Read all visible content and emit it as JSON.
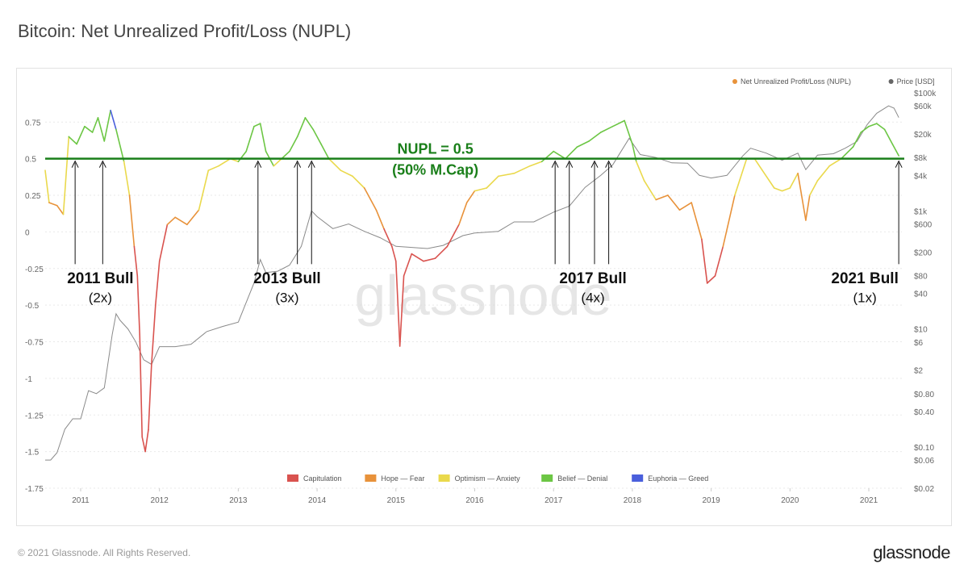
{
  "header": {
    "title": "Bitcoin: Net Unrealized Profit/Loss (NUPL)"
  },
  "footer": {
    "copyright": "© 2021 Glassnode. All Rights Reserved.",
    "brand": "glassnode"
  },
  "watermark": "glassnode",
  "colors": {
    "capitulation": "#d9534f",
    "hope_fear": "#e8923a",
    "optimism_anxiety": "#ead94c",
    "belief_denial": "#6cc644",
    "euphoria_greed": "#4a5fdc",
    "price": "#8a8a8a",
    "threshold": "#1a7f1a",
    "nupl_legend": "#e8923a",
    "price_legend": "#666666"
  },
  "chart_data": {
    "type": "line",
    "title": "Bitcoin: Net Unrealized Profit/Loss (NUPL)",
    "left_axis": {
      "ticks": [
        "0.75",
        "0.5",
        "0.25",
        "0",
        "-0.25",
        "-0.5",
        "-0.75",
        "-1",
        "-1.25",
        "-1.5",
        "-1.75"
      ],
      "tick_values": [
        0.75,
        0.5,
        0.25,
        0,
        -0.25,
        -0.5,
        -0.75,
        -1,
        -1.25,
        -1.5,
        -1.75
      ],
      "ylim": [
        -1.75,
        0.95
      ]
    },
    "right_axis": {
      "scale": "log",
      "ticks": [
        "$100k",
        "$60k",
        "$20k",
        "$8k",
        "$4k",
        "$1k",
        "$600",
        "$200",
        "$80",
        "$40",
        "$10",
        "$6",
        "$2",
        "$0.80",
        "$0.40",
        "$0.10",
        "$0.06",
        "$0.02"
      ],
      "tick_values": [
        100000,
        60000,
        20000,
        8000,
        4000,
        1000,
        600,
        200,
        80,
        40,
        10,
        6,
        2,
        0.8,
        0.4,
        0.1,
        0.06,
        0.02
      ],
      "ylim": [
        0.02,
        100000
      ]
    },
    "x_axis": {
      "ticks": [
        "2011",
        "2012",
        "2013",
        "2014",
        "2015",
        "2016",
        "2017",
        "2018",
        "2019",
        "2020",
        "2021"
      ],
      "tick_values": [
        2011,
        2012,
        2013,
        2014,
        2015,
        2016,
        2017,
        2018,
        2019,
        2020,
        2021
      ],
      "xlim": [
        2010.55,
        2021.45
      ]
    },
    "legend_top": [
      {
        "label": "Net Unrealized Profit/Loss (NUPL)",
        "color": "#e8923a"
      },
      {
        "label": "Price [USD]",
        "color": "#666666"
      }
    ],
    "legend_bottom": [
      {
        "label": "Capitulation",
        "color": "#d9534f"
      },
      {
        "label": "Hope — Fear",
        "color": "#e8923a"
      },
      {
        "label": "Optimism — Anxiety",
        "color": "#ead94c"
      },
      {
        "label": "Belief — Denial",
        "color": "#6cc644"
      },
      {
        "label": "Euphoria — Greed",
        "color": "#4a5fdc"
      }
    ],
    "threshold": {
      "value": 0.5,
      "label_line1": "NUPL = 0.5",
      "label_line2": "(50% M.Cap)"
    },
    "annotations": [
      {
        "title": "2011 Bull",
        "multiple": "(2x)",
        "x": 2011.25
      },
      {
        "title": "2013 Bull",
        "multiple": "(3x)",
        "x": 2013.62
      },
      {
        "title": "2017 Bull",
        "multiple": "(4x)",
        "x": 2017.5
      },
      {
        "title": "2021 Bull",
        "multiple": "(1x)",
        "x": 2020.95
      }
    ],
    "arrows": [
      2010.93,
      2011.28,
      2013.25,
      2013.75,
      2013.93,
      2017.02,
      2017.2,
      2017.52,
      2017.7,
      2021.38
    ],
    "series": [
      {
        "name": "Net Unrealized Profit/Loss (NUPL)",
        "points": [
          [
            2010.55,
            0.42
          ],
          [
            2010.6,
            0.2
          ],
          [
            2010.7,
            0.18
          ],
          [
            2010.78,
            0.12
          ],
          [
            2010.85,
            0.65
          ],
          [
            2010.95,
            0.6
          ],
          [
            2011.05,
            0.72
          ],
          [
            2011.15,
            0.68
          ],
          [
            2011.22,
            0.78
          ],
          [
            2011.3,
            0.62
          ],
          [
            2011.38,
            0.83
          ],
          [
            2011.45,
            0.7
          ],
          [
            2011.55,
            0.48
          ],
          [
            2011.62,
            0.25
          ],
          [
            2011.68,
            -0.1
          ],
          [
            2011.72,
            -0.3
          ],
          [
            2011.75,
            -0.7
          ],
          [
            2011.78,
            -1.4
          ],
          [
            2011.82,
            -1.5
          ],
          [
            2011.86,
            -1.35
          ],
          [
            2011.9,
            -0.9
          ],
          [
            2011.95,
            -0.5
          ],
          [
            2012.0,
            -0.2
          ],
          [
            2012.1,
            0.05
          ],
          [
            2012.2,
            0.1
          ],
          [
            2012.35,
            0.05
          ],
          [
            2012.5,
            0.15
          ],
          [
            2012.62,
            0.42
          ],
          [
            2012.75,
            0.45
          ],
          [
            2012.9,
            0.5
          ],
          [
            2013.0,
            0.48
          ],
          [
            2013.1,
            0.55
          ],
          [
            2013.2,
            0.72
          ],
          [
            2013.28,
            0.74
          ],
          [
            2013.35,
            0.55
          ],
          [
            2013.45,
            0.45
          ],
          [
            2013.55,
            0.5
          ],
          [
            2013.65,
            0.55
          ],
          [
            2013.75,
            0.65
          ],
          [
            2013.85,
            0.78
          ],
          [
            2013.95,
            0.7
          ],
          [
            2014.05,
            0.6
          ],
          [
            2014.15,
            0.5
          ],
          [
            2014.3,
            0.42
          ],
          [
            2014.45,
            0.38
          ],
          [
            2014.6,
            0.3
          ],
          [
            2014.75,
            0.15
          ],
          [
            2014.85,
            0.02
          ],
          [
            2014.95,
            -0.1
          ],
          [
            2015.0,
            -0.2
          ],
          [
            2015.05,
            -0.78
          ],
          [
            2015.1,
            -0.3
          ],
          [
            2015.2,
            -0.15
          ],
          [
            2015.35,
            -0.2
          ],
          [
            2015.5,
            -0.18
          ],
          [
            2015.65,
            -0.1
          ],
          [
            2015.8,
            0.05
          ],
          [
            2015.9,
            0.2
          ],
          [
            2016.0,
            0.28
          ],
          [
            2016.15,
            0.3
          ],
          [
            2016.3,
            0.38
          ],
          [
            2016.5,
            0.4
          ],
          [
            2016.7,
            0.45
          ],
          [
            2016.85,
            0.48
          ],
          [
            2017.0,
            0.55
          ],
          [
            2017.15,
            0.5
          ],
          [
            2017.3,
            0.58
          ],
          [
            2017.45,
            0.62
          ],
          [
            2017.6,
            0.68
          ],
          [
            2017.75,
            0.72
          ],
          [
            2017.9,
            0.76
          ],
          [
            2018.0,
            0.6
          ],
          [
            2018.05,
            0.48
          ],
          [
            2018.15,
            0.35
          ],
          [
            2018.3,
            0.22
          ],
          [
            2018.45,
            0.25
          ],
          [
            2018.6,
            0.15
          ],
          [
            2018.75,
            0.2
          ],
          [
            2018.88,
            -0.05
          ],
          [
            2018.95,
            -0.35
          ],
          [
            2019.05,
            -0.3
          ],
          [
            2019.15,
            -0.1
          ],
          [
            2019.3,
            0.25
          ],
          [
            2019.45,
            0.5
          ],
          [
            2019.55,
            0.5
          ],
          [
            2019.65,
            0.42
          ],
          [
            2019.8,
            0.3
          ],
          [
            2019.9,
            0.28
          ],
          [
            2020.0,
            0.3
          ],
          [
            2020.1,
            0.4
          ],
          [
            2020.2,
            0.08
          ],
          [
            2020.25,
            0.25
          ],
          [
            2020.35,
            0.35
          ],
          [
            2020.5,
            0.45
          ],
          [
            2020.65,
            0.5
          ],
          [
            2020.8,
            0.58
          ],
          [
            2020.9,
            0.68
          ],
          [
            2021.0,
            0.72
          ],
          [
            2021.1,
            0.74
          ],
          [
            2021.2,
            0.7
          ],
          [
            2021.3,
            0.6
          ],
          [
            2021.38,
            0.52
          ]
        ]
      },
      {
        "name": "Price [USD]",
        "points": [
          [
            2010.55,
            0.06
          ],
          [
            2010.62,
            0.06
          ],
          [
            2010.7,
            0.08
          ],
          [
            2010.8,
            0.2
          ],
          [
            2010.9,
            0.3
          ],
          [
            2011.0,
            0.3
          ],
          [
            2011.1,
            0.9
          ],
          [
            2011.2,
            0.8
          ],
          [
            2011.3,
            1.0
          ],
          [
            2011.4,
            8
          ],
          [
            2011.45,
            18
          ],
          [
            2011.5,
            14
          ],
          [
            2011.6,
            10
          ],
          [
            2011.7,
            6
          ],
          [
            2011.8,
            3
          ],
          [
            2011.9,
            2.5
          ],
          [
            2012.0,
            5
          ],
          [
            2012.2,
            5
          ],
          [
            2012.4,
            5.5
          ],
          [
            2012.6,
            9
          ],
          [
            2012.8,
            11
          ],
          [
            2013.0,
            13
          ],
          [
            2013.2,
            60
          ],
          [
            2013.28,
            150
          ],
          [
            2013.35,
            90
          ],
          [
            2013.5,
            95
          ],
          [
            2013.65,
            120
          ],
          [
            2013.8,
            250
          ],
          [
            2013.93,
            1000
          ],
          [
            2014.0,
            800
          ],
          [
            2014.2,
            500
          ],
          [
            2014.4,
            600
          ],
          [
            2014.6,
            450
          ],
          [
            2014.8,
            350
          ],
          [
            2015.0,
            250
          ],
          [
            2015.2,
            240
          ],
          [
            2015.4,
            230
          ],
          [
            2015.6,
            260
          ],
          [
            2015.85,
            380
          ],
          [
            2016.0,
            420
          ],
          [
            2016.3,
            450
          ],
          [
            2016.5,
            650
          ],
          [
            2016.75,
            650
          ],
          [
            2017.0,
            950
          ],
          [
            2017.2,
            1200
          ],
          [
            2017.4,
            2500
          ],
          [
            2017.6,
            4000
          ],
          [
            2017.75,
            6000
          ],
          [
            2017.96,
            17000
          ],
          [
            2018.1,
            9000
          ],
          [
            2018.3,
            8000
          ],
          [
            2018.5,
            6500
          ],
          [
            2018.7,
            6400
          ],
          [
            2018.85,
            4000
          ],
          [
            2019.0,
            3600
          ],
          [
            2019.2,
            4000
          ],
          [
            2019.4,
            8500
          ],
          [
            2019.5,
            11500
          ],
          [
            2019.7,
            9500
          ],
          [
            2019.9,
            7200
          ],
          [
            2020.1,
            9500
          ],
          [
            2020.2,
            5000
          ],
          [
            2020.35,
            8800
          ],
          [
            2020.55,
            9300
          ],
          [
            2020.7,
            11500
          ],
          [
            2020.85,
            15000
          ],
          [
            2020.98,
            29000
          ],
          [
            2021.1,
            45000
          ],
          [
            2021.25,
            60000
          ],
          [
            2021.32,
            55000
          ],
          [
            2021.38,
            38000
          ]
        ]
      }
    ]
  }
}
